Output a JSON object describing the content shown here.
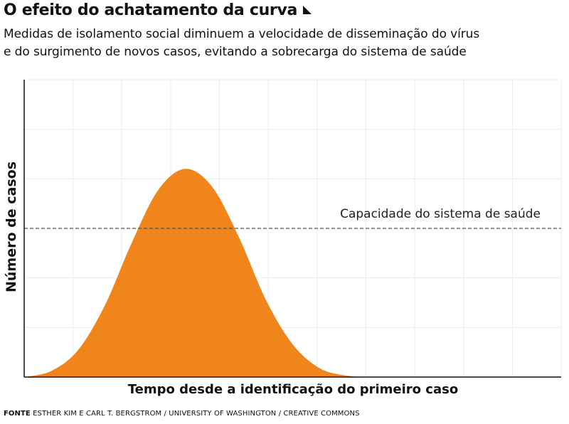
{
  "header": {
    "title": "O efeito do achatamento da curva",
    "subtitle_line1": "Medidas de isolamento social diminuem a velocidade de disseminação do vírus",
    "subtitle_line2": "e do surgimento de novos casos, evitando a sobrecarga do sistema de saúde"
  },
  "footer": {
    "source_prefix": "FONTE",
    "source_text": " ESTHER KIM E CARL T. BERGSTROM / UNIVERSITY OF WASHINGTON / CREATIVE COMMONS"
  },
  "chart_data": {
    "type": "area",
    "xlabel": "Tempo desde a identificação do primeiro caso",
    "ylabel": "Número de casos",
    "xlim": [
      0,
      100
    ],
    "ylim": [
      0,
      100
    ],
    "grid": true,
    "series": [
      {
        "color": "#f0851c",
        "x": [
          0,
          5,
          10,
          15,
          20,
          25,
          30,
          35,
          40,
          45,
          50,
          55,
          60,
          65,
          70,
          75,
          80,
          90,
          100
        ],
        "y": [
          0,
          2,
          9,
          24,
          45,
          63,
          70,
          64,
          47,
          26,
          11,
          3,
          0.5,
          0,
          0,
          0,
          0,
          0,
          0
        ]
      }
    ],
    "reference_line": {
      "label": "Capacidade do sistema de saúde",
      "y": 50,
      "style": "dashed",
      "color": "#555555"
    },
    "colors": {
      "axis": "#111111",
      "grid": "#ececec"
    }
  }
}
